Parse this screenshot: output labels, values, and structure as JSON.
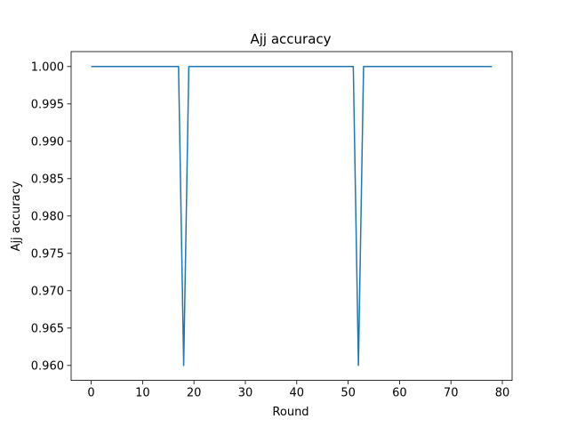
{
  "chart_data": {
    "type": "line",
    "title": "Ajj accuracy",
    "xlabel": "Round",
    "ylabel": "Ajj accuracy",
    "xlim": [
      -3.9,
      81.9
    ],
    "ylim": [
      0.958,
      1.002
    ],
    "xticks": [
      0,
      10,
      20,
      30,
      40,
      50,
      60,
      70,
      80
    ],
    "xtick_labels": [
      "0",
      "10",
      "20",
      "30",
      "40",
      "50",
      "60",
      "70",
      "80"
    ],
    "yticks": [
      0.96,
      0.965,
      0.97,
      0.975,
      0.98,
      0.985,
      0.99,
      0.995,
      1.0
    ],
    "ytick_labels": [
      "0.960",
      "0.965",
      "0.970",
      "0.975",
      "0.980",
      "0.985",
      "0.990",
      "0.995",
      "1.000"
    ],
    "grid": false,
    "series": [
      {
        "color": "#1f77b4",
        "x": [
          0,
          17,
          18,
          19,
          51,
          52,
          53,
          78
        ],
        "y": [
          1.0,
          1.0,
          0.96,
          1.0,
          1.0,
          0.96,
          1.0,
          1.0
        ]
      }
    ]
  }
}
